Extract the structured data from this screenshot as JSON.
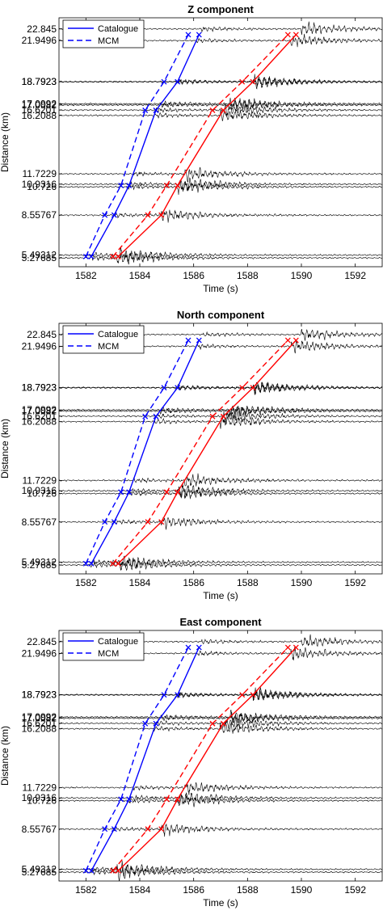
{
  "figure": {
    "background": "#ffffff",
    "trace_color": "#000000",
    "catalogue_color": "#0000ff",
    "mcm_color": "#ff0000"
  },
  "chart_data": [
    {
      "type": "line",
      "title": "Z component",
      "xlabel": "Time (s)",
      "ylabel": "Distance (km)",
      "xlim": [
        1581,
        1593
      ],
      "ylim": [
        4.6,
        23.7
      ],
      "xticks": [
        1582,
        1584,
        1586,
        1588,
        1590,
        1592
      ],
      "yticks": [
        "5.27685",
        "5.49312",
        "8.55767",
        "10.726",
        "10.9316",
        "11.7229",
        "16.2088",
        "16.6201",
        "17.0082",
        "17.0992",
        "18.7923",
        "18.7923",
        "21.9496",
        "22.845"
      ],
      "legend": {
        "position": "top-left",
        "entries": [
          "Catalogue",
          "MCM"
        ]
      },
      "stations_km": [
        5.27685,
        5.49312,
        8.55767,
        10.726,
        10.9316,
        11.7229,
        16.2088,
        16.6201,
        17.0082,
        17.0992,
        18.7923,
        18.7923,
        21.9496,
        22.845
      ],
      "series": [
        {
          "name": "Catalogue",
          "phase": "P",
          "style": "solid",
          "color": "#0000ff",
          "x": [
            1582.2,
            1583.05,
            1583.6,
            1584.6,
            1585.4,
            1586.2
          ],
          "y": [
            5.38,
            8.56,
            10.83,
            16.6,
            18.79,
            22.4
          ]
        },
        {
          "name": "MCM",
          "phase": "P",
          "style": "dashed",
          "color": "#0000ff",
          "x": [
            1582.0,
            1582.7,
            1583.3,
            1584.2,
            1584.9,
            1585.8
          ],
          "y": [
            5.38,
            8.56,
            10.83,
            16.6,
            18.79,
            22.4
          ]
        },
        {
          "name": "Catalogue",
          "phase": "S",
          "style": "solid",
          "color": "#ff0000",
          "x": [
            1583.2,
            1584.8,
            1585.4,
            1587.1,
            1588.2,
            1589.8
          ],
          "y": [
            5.38,
            8.56,
            10.83,
            16.6,
            18.79,
            22.4
          ]
        },
        {
          "name": "MCM",
          "phase": "S",
          "style": "dashed",
          "color": "#ff0000",
          "x": [
            1583.0,
            1584.3,
            1585.0,
            1586.7,
            1587.8,
            1589.5
          ],
          "y": [
            5.38,
            8.56,
            10.83,
            16.6,
            18.79,
            22.4
          ]
        }
      ]
    },
    {
      "type": "line",
      "title": "North component",
      "xlabel": "Time (s)",
      "ylabel": "Distance (km)",
      "xlim": [
        1581,
        1593
      ],
      "ylim": [
        4.6,
        23.7
      ],
      "xticks": [
        1582,
        1584,
        1586,
        1588,
        1590,
        1592
      ],
      "yticks": [
        "5.27685",
        "5.49312",
        "8.55767",
        "10.726",
        "10.9316",
        "11.7229",
        "16.2088",
        "16.6201",
        "17.0082",
        "17.0992",
        "18.7923",
        "18.7923",
        "21.9496",
        "22.845"
      ],
      "legend": {
        "position": "top-left",
        "entries": [
          "Catalogue",
          "MCM"
        ]
      },
      "stations_km": [
        5.27685,
        5.49312,
        8.55767,
        10.726,
        10.9316,
        11.7229,
        16.2088,
        16.6201,
        17.0082,
        17.0992,
        18.7923,
        18.7923,
        21.9496,
        22.845
      ],
      "series": [
        {
          "name": "Catalogue",
          "phase": "P",
          "style": "solid",
          "color": "#0000ff",
          "x": [
            1582.2,
            1583.05,
            1583.6,
            1584.6,
            1585.4,
            1586.2
          ],
          "y": [
            5.38,
            8.56,
            10.83,
            16.6,
            18.79,
            22.4
          ]
        },
        {
          "name": "MCM",
          "phase": "P",
          "style": "dashed",
          "color": "#0000ff",
          "x": [
            1582.0,
            1582.7,
            1583.3,
            1584.2,
            1584.9,
            1585.8
          ],
          "y": [
            5.38,
            8.56,
            10.83,
            16.6,
            18.79,
            22.4
          ]
        },
        {
          "name": "Catalogue",
          "phase": "S",
          "style": "solid",
          "color": "#ff0000",
          "x": [
            1583.2,
            1584.8,
            1585.4,
            1587.1,
            1588.2,
            1589.8
          ],
          "y": [
            5.38,
            8.56,
            10.83,
            16.6,
            18.79,
            22.4
          ]
        },
        {
          "name": "MCM",
          "phase": "S",
          "style": "dashed",
          "color": "#ff0000",
          "x": [
            1583.0,
            1584.3,
            1585.0,
            1586.7,
            1587.8,
            1589.5
          ],
          "y": [
            5.38,
            8.56,
            10.83,
            16.6,
            18.79,
            22.4
          ]
        }
      ]
    },
    {
      "type": "line",
      "title": "East component",
      "xlabel": "Time (s)",
      "ylabel": "Distance (km)",
      "xlim": [
        1581,
        1593
      ],
      "ylim": [
        4.6,
        23.7
      ],
      "xticks": [
        1582,
        1584,
        1586,
        1588,
        1590,
        1592
      ],
      "yticks": [
        "5.27685",
        "5.49312",
        "8.55767",
        "10.726",
        "10.9316",
        "11.7229",
        "16.2088",
        "16.6201",
        "17.0082",
        "17.0992",
        "18.7923",
        "18.7923",
        "21.9496",
        "22.845"
      ],
      "legend": {
        "position": "top-left",
        "entries": [
          "Catalogue",
          "MCM"
        ]
      },
      "stations_km": [
        5.27685,
        5.49312,
        8.55767,
        10.726,
        10.9316,
        11.7229,
        16.2088,
        16.6201,
        17.0082,
        17.0992,
        18.7923,
        18.7923,
        21.9496,
        22.845
      ],
      "series": [
        {
          "name": "Catalogue",
          "phase": "P",
          "style": "solid",
          "color": "#0000ff",
          "x": [
            1582.2,
            1583.05,
            1583.6,
            1584.6,
            1585.4,
            1586.2
          ],
          "y": [
            5.38,
            8.56,
            10.83,
            16.6,
            18.79,
            22.4
          ]
        },
        {
          "name": "MCM",
          "phase": "P",
          "style": "dashed",
          "color": "#0000ff",
          "x": [
            1582.0,
            1582.7,
            1583.3,
            1584.2,
            1584.9,
            1585.8
          ],
          "y": [
            5.38,
            8.56,
            10.83,
            16.6,
            18.79,
            22.4
          ]
        },
        {
          "name": "Catalogue",
          "phase": "S",
          "style": "solid",
          "color": "#ff0000",
          "x": [
            1583.2,
            1584.8,
            1585.4,
            1587.1,
            1588.2,
            1589.8
          ],
          "y": [
            5.38,
            8.56,
            10.83,
            16.6,
            18.79,
            22.4
          ]
        },
        {
          "name": "MCM",
          "phase": "S",
          "style": "dashed",
          "color": "#ff0000",
          "x": [
            1583.0,
            1584.3,
            1585.0,
            1586.7,
            1587.8,
            1589.5
          ],
          "y": [
            5.38,
            8.56,
            10.83,
            16.6,
            18.79,
            22.4
          ]
        }
      ]
    }
  ]
}
